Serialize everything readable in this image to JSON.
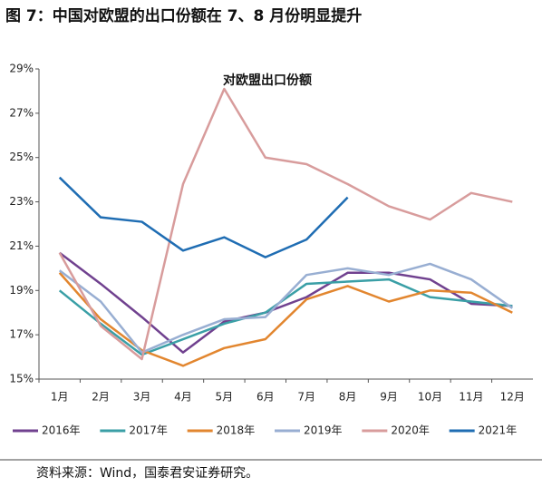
{
  "chart_data": {
    "type": "line",
    "title": "图 7：中国对欧盟的出口份额在 7、8 月份明显提升",
    "annotation": "对欧盟出口份额",
    "source": "资料来源：Wind，国泰君安证券研究。",
    "categories": [
      "1月",
      "2月",
      "3月",
      "4月",
      "5月",
      "6月",
      "7月",
      "8月",
      "9月",
      "10月",
      "11月",
      "12月"
    ],
    "series": [
      {
        "name": "2016年",
        "color": "#70418f",
        "values": [
          20.7,
          19.3,
          17.8,
          16.2,
          17.6,
          18.0,
          18.7,
          19.8,
          19.8,
          19.5,
          18.4,
          18.3
        ]
      },
      {
        "name": "2017年",
        "color": "#3a9fa6",
        "values": [
          19.0,
          17.5,
          16.1,
          16.8,
          17.5,
          18.0,
          19.3,
          19.4,
          19.5,
          18.7,
          18.5,
          18.3
        ]
      },
      {
        "name": "2018年",
        "color": "#e2862f",
        "values": [
          19.8,
          17.7,
          16.3,
          15.6,
          16.4,
          16.8,
          18.6,
          19.2,
          18.5,
          19.0,
          18.9,
          18.0
        ]
      },
      {
        "name": "2019年",
        "color": "#98aed2",
        "values": [
          19.9,
          18.5,
          16.2,
          17.0,
          17.7,
          17.8,
          19.7,
          20.0,
          19.7,
          20.2,
          19.5,
          18.2
        ]
      },
      {
        "name": "2020年",
        "color": "#d89c9c",
        "values": [
          20.7,
          17.4,
          15.9,
          23.8,
          28.1,
          25.0,
          24.7,
          23.8,
          22.8,
          22.2,
          23.4,
          23.0
        ]
      },
      {
        "name": "2021年",
        "color": "#1f6db3",
        "values": [
          24.1,
          22.3,
          22.1,
          20.8,
          21.4,
          20.5,
          21.3,
          23.2,
          null,
          null,
          null,
          null
        ]
      }
    ],
    "ylim": [
      15,
      29
    ],
    "yticks": [
      {
        "value": 15,
        "label": "15%"
      },
      {
        "value": 17,
        "label": "17%"
      },
      {
        "value": 19,
        "label": "19%"
      },
      {
        "value": 21,
        "label": "21%"
      },
      {
        "value": 23,
        "label": "23%"
      },
      {
        "value": 25,
        "label": "25%"
      },
      {
        "value": 27,
        "label": "27%"
      },
      {
        "value": 29,
        "label": "29%"
      }
    ],
    "grid": false,
    "legend": "bottom"
  }
}
